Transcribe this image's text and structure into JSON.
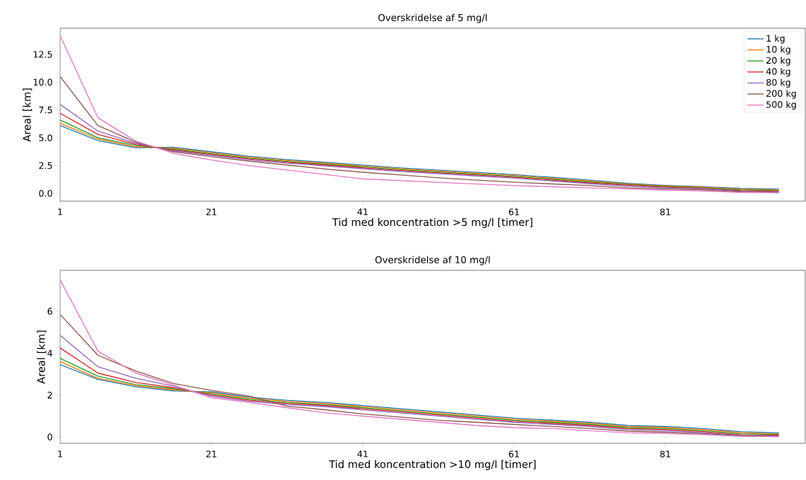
{
  "chart_data": [
    {
      "type": "line",
      "title": "Overskridelse af 5 mg/l",
      "xlabel": "Tid med koncentration >5 mg/l [timer]",
      "ylabel": "Areal [km]",
      "legend": "top right",
      "line_style": "solid",
      "x": [
        1,
        6,
        11,
        16,
        21,
        26,
        31,
        36,
        41,
        46,
        51,
        56,
        61,
        66,
        71,
        76,
        81,
        86,
        91,
        96
      ],
      "xlim": [
        1,
        99.5
      ],
      "xticks": [
        1,
        21,
        41,
        61,
        81
      ],
      "ylim": [
        -0.7,
        14.85
      ],
      "yticks": [
        {
          "value": 0,
          "label": "0.0"
        },
        {
          "value": 2.5,
          "label": "2.5"
        },
        {
          "value": 5,
          "label": "5.0"
        },
        {
          "value": 7.5,
          "label": "7.5"
        },
        {
          "value": 10,
          "label": "10.0"
        },
        {
          "value": 12.5,
          "label": "12.5"
        }
      ],
      "series": [
        {
          "name": "1 kg",
          "color": "#1f77b4",
          "values": [
            6.1,
            4.75,
            4.1,
            4.14,
            3.74,
            3.34,
            3.04,
            2.79,
            2.54,
            2.29,
            2.09,
            1.89,
            1.69,
            1.44,
            1.19,
            0.9,
            0.72,
            0.6,
            0.44,
            0.38
          ]
        },
        {
          "name": "10 kg",
          "color": "#ff7f0e",
          "values": [
            6.3,
            4.9,
            4.2,
            4.06,
            3.66,
            3.26,
            2.96,
            2.71,
            2.46,
            2.21,
            2.01,
            1.81,
            1.61,
            1.36,
            1.11,
            0.85,
            0.67,
            0.55,
            0.38,
            0.32
          ]
        },
        {
          "name": "20 kg",
          "color": "#2ca02c",
          "values": [
            6.6,
            5.0,
            4.3,
            3.98,
            3.58,
            3.18,
            2.88,
            2.63,
            2.38,
            2.13,
            1.93,
            1.73,
            1.53,
            1.28,
            1.03,
            0.8,
            0.62,
            0.5,
            0.32,
            0.26
          ]
        },
        {
          "name": "40 kg",
          "color": "#d62728",
          "values": [
            7.2,
            5.3,
            4.4,
            3.9,
            3.5,
            3.1,
            2.8,
            2.55,
            2.3,
            2.05,
            1.85,
            1.65,
            1.45,
            1.2,
            0.95,
            0.75,
            0.57,
            0.45,
            0.26,
            0.2
          ]
        },
        {
          "name": "80 kg",
          "color": "#9467bd",
          "values": [
            8.0,
            5.6,
            4.5,
            3.82,
            3.42,
            3.02,
            2.72,
            2.47,
            2.22,
            1.97,
            1.77,
            1.57,
            1.37,
            1.12,
            0.87,
            0.65,
            0.5,
            0.42,
            0.2,
            0.15
          ]
        },
        {
          "name": "200 kg",
          "color": "#8c564b",
          "values": [
            10.5,
            6.1,
            4.6,
            3.74,
            3.3,
            2.9,
            2.55,
            2.2,
            1.9,
            1.65,
            1.4,
            1.2,
            1.0,
            0.85,
            0.7,
            0.5,
            0.4,
            0.33,
            0.14,
            0.1
          ]
        },
        {
          "name": "500 kg",
          "color": "#e377c2",
          "values": [
            14.2,
            6.8,
            4.7,
            3.6,
            3.0,
            2.5,
            2.1,
            1.7,
            1.3,
            1.15,
            1.0,
            0.85,
            0.7,
            0.6,
            0.5,
            0.4,
            0.3,
            0.22,
            0.08,
            0.05
          ]
        }
      ]
    },
    {
      "type": "line",
      "title": "Overskridelse af 10 mg/l",
      "xlabel": "Tid med koncentration >10 mg/l [timer]",
      "ylabel": "Areal [km]",
      "legend": false,
      "line_style": "solid",
      "x": [
        1,
        6,
        11,
        16,
        21,
        26,
        31,
        36,
        41,
        46,
        51,
        56,
        61,
        66,
        71,
        76,
        81,
        86,
        91,
        96
      ],
      "xlim": [
        1,
        99.5
      ],
      "xticks": [
        1,
        21,
        41,
        61,
        81
      ],
      "ylim": [
        -0.3,
        7.95
      ],
      "yticks": [
        0,
        2,
        4,
        6
      ],
      "series": [
        {
          "color": "#1f77b4",
          "values": [
            3.45,
            2.75,
            2.4,
            2.2,
            2.15,
            1.9,
            1.75,
            1.65,
            1.5,
            1.35,
            1.2,
            1.05,
            0.9,
            0.8,
            0.7,
            0.55,
            0.5,
            0.4,
            0.25,
            0.2
          ]
        },
        {
          "color": "#ff7f0e",
          "values": [
            3.6,
            2.8,
            2.45,
            2.25,
            2.1,
            1.85,
            1.7,
            1.6,
            1.45,
            1.3,
            1.15,
            1.0,
            0.85,
            0.75,
            0.65,
            0.5,
            0.45,
            0.35,
            0.2,
            0.15
          ]
        },
        {
          "color": "#2ca02c",
          "values": [
            3.75,
            2.9,
            2.5,
            2.3,
            2.05,
            1.8,
            1.65,
            1.55,
            1.4,
            1.25,
            1.1,
            0.95,
            0.8,
            0.7,
            0.6,
            0.45,
            0.4,
            0.3,
            0.15,
            0.12
          ]
        },
        {
          "color": "#d62728",
          "values": [
            4.25,
            3.05,
            2.6,
            2.35,
            2.0,
            1.75,
            1.6,
            1.5,
            1.35,
            1.2,
            1.05,
            0.9,
            0.75,
            0.65,
            0.55,
            0.4,
            0.35,
            0.25,
            0.1,
            0.09
          ]
        },
        {
          "color": "#9467bd",
          "values": [
            4.85,
            3.35,
            2.8,
            2.42,
            1.95,
            1.7,
            1.55,
            1.45,
            1.3,
            1.15,
            1.0,
            0.85,
            0.7,
            0.6,
            0.5,
            0.35,
            0.3,
            0.2,
            0.07,
            0.06
          ]
        },
        {
          "color": "#8c564b",
          "values": [
            5.85,
            3.9,
            3.15,
            2.55,
            2.22,
            1.95,
            1.47,
            1.3,
            1.1,
            0.95,
            0.8,
            0.7,
            0.6,
            0.5,
            0.4,
            0.28,
            0.23,
            0.16,
            0.05,
            0.04
          ]
        },
        {
          "color": "#e377c2",
          "values": [
            7.5,
            4.1,
            3.05,
            2.47,
            1.88,
            1.65,
            1.4,
            1.15,
            1.0,
            0.85,
            0.7,
            0.55,
            0.45,
            0.4,
            0.3,
            0.2,
            0.17,
            0.12,
            0.03,
            0.02
          ]
        }
      ]
    }
  ]
}
